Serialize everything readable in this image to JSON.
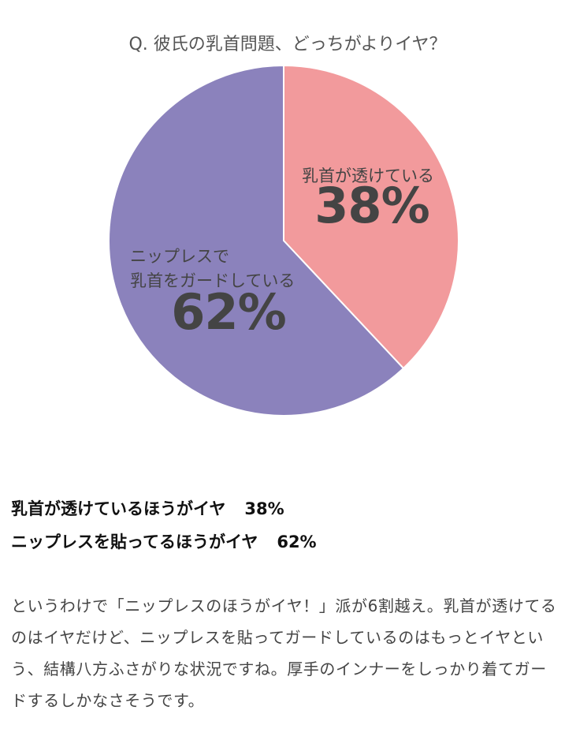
{
  "chart_data": {
    "type": "pie",
    "title": "Q. 彼氏の乳首問題、どっちがよりイヤ？",
    "categories": [
      "乳首が透けている",
      "ニップレスで\n乳首をガードしている"
    ],
    "values": [
      38,
      62
    ],
    "value_labels": [
      "38%",
      "62%"
    ],
    "colors": [
      "#f29a9c",
      "#8b82bc"
    ]
  },
  "summary": [
    {
      "label": "乳首が透けているほうがイヤ",
      "value": "38%"
    },
    {
      "label": "ニップレスを貼ってるほうがイヤ",
      "value": "62%"
    }
  ],
  "body": "というわけで「ニップレスのほうがイヤ！」派が6割越え。乳首が透けてるのはイヤだけど、ニップレスを貼ってガードしているのはもっとイヤという、結構八方ふさがりな状況ですね。厚手のインナーをしっかり着てガードするしかなさそうです。"
}
